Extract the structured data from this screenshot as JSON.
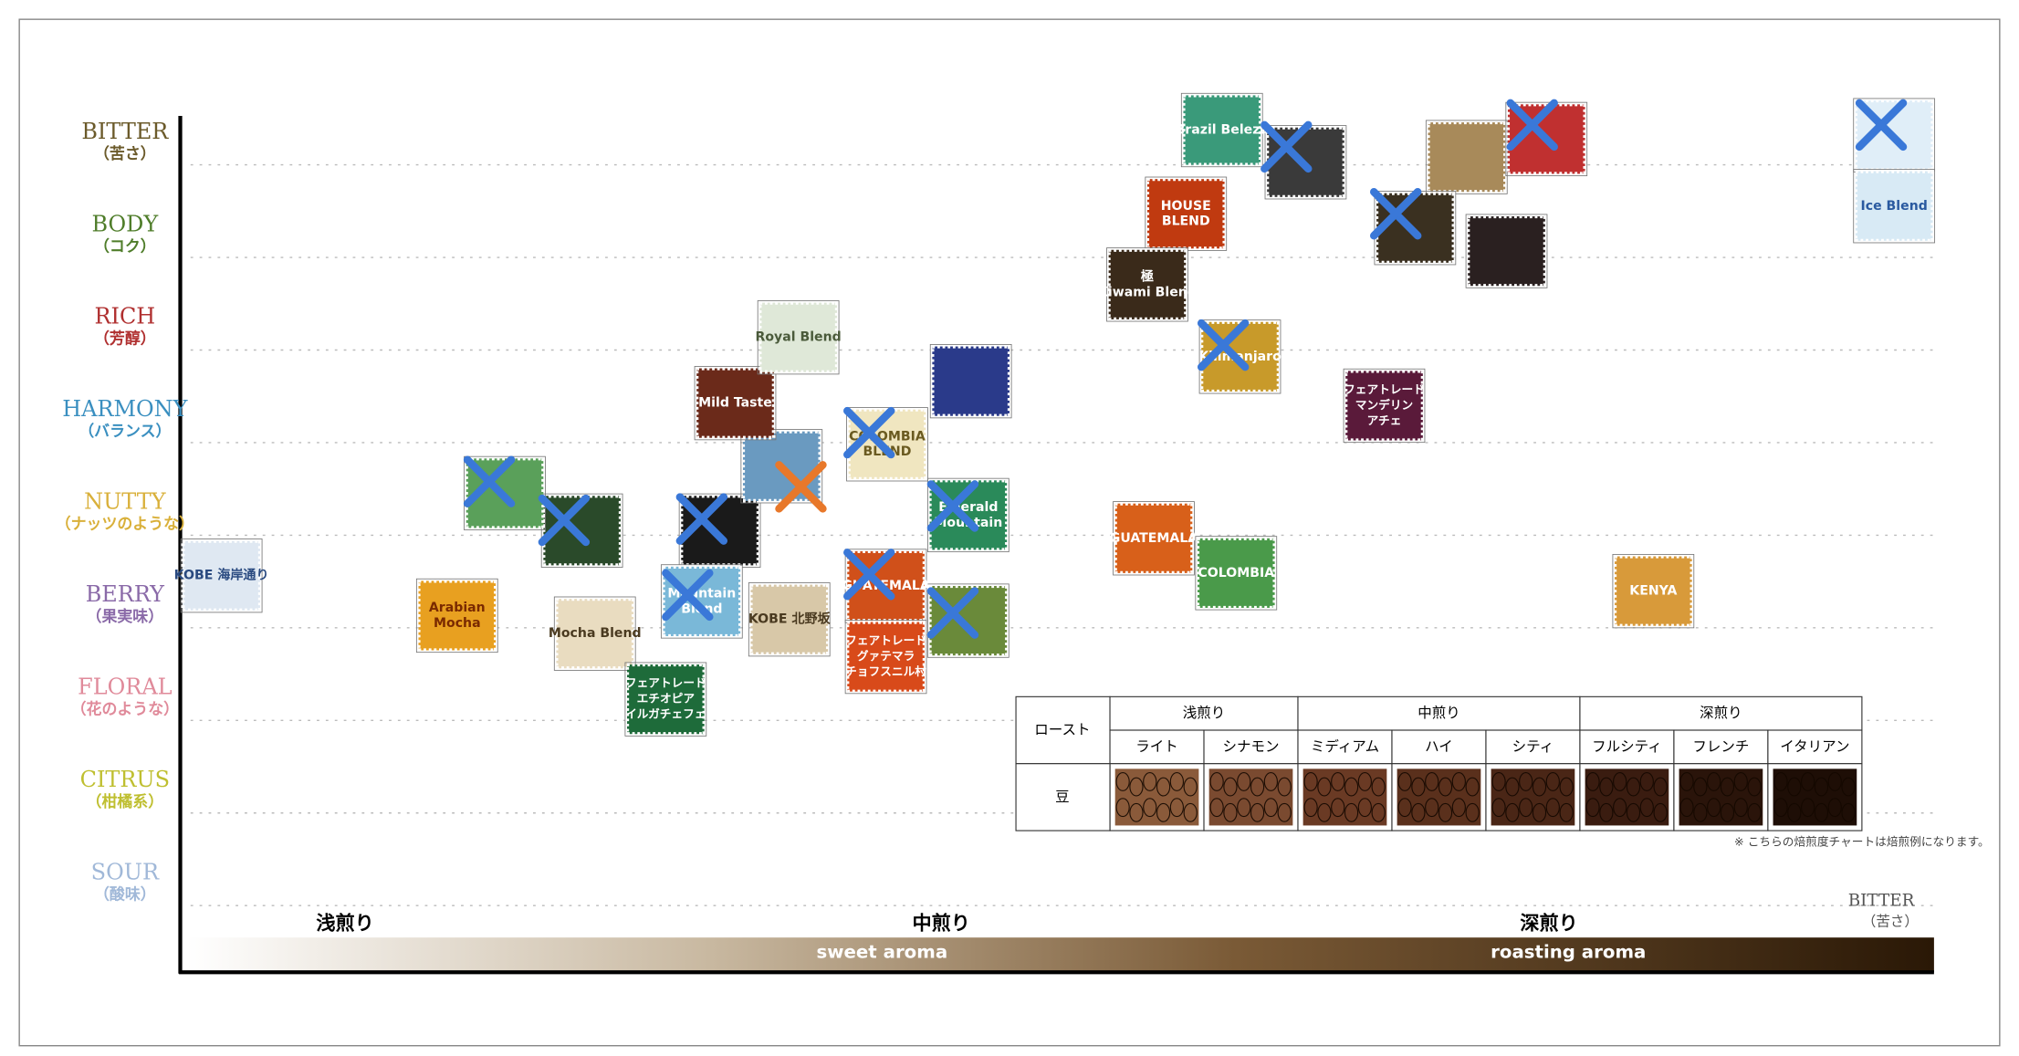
{
  "flavor_axis": [
    {
      "en": "BITTER",
      "ja": "（苦さ）"
    },
    {
      "en": "BODY",
      "ja": "（コク）"
    },
    {
      "en": "RICH",
      "ja": "（芳醇）"
    },
    {
      "en": "HARMONY",
      "ja": "（バランス）"
    },
    {
      "en": "NUTTY",
      "ja": "（ナッツのような）"
    },
    {
      "en": "BERRY",
      "ja": "（果実味）"
    },
    {
      "en": "FLORAL",
      "ja": "（花のような）"
    },
    {
      "en": "CITRUS",
      "ja": "（柑橘系）"
    },
    {
      "en": "SOUR",
      "ja": "（酸味）"
    }
  ],
  "roast_axis": {
    "levels": [
      "浅煎り",
      "中煎り",
      "深煎り"
    ],
    "aromas": [
      "sweet aroma",
      "roasting aroma"
    ],
    "end_en": "BITTER",
    "end_ja": "（苦さ）"
  },
  "stamps": [
    {
      "lines": [
        "KOBE 海岸通り"
      ]
    },
    {
      "lines": [
        "Arabian",
        "Mocha"
      ]
    },
    {
      "lines": [
        "Mocha Blend"
      ]
    },
    {
      "lines": [
        "フェアトレード",
        "エチオピア",
        "イルガチェフェ"
      ]
    },
    {
      "lines": [
        "Mild Taste"
      ]
    },
    {
      "lines": [
        "Royal Blend"
      ]
    },
    {
      "lines": [
        "Mountain",
        "Blend"
      ]
    },
    {
      "lines": [
        "KOBE 北野坂"
      ]
    },
    {
      "lines": [
        "GUATEMALA"
      ]
    },
    {
      "lines": [
        "フェアトレード",
        "グァテマラ",
        "チョフスニル村"
      ]
    },
    {
      "lines": [
        "COLOMBIA",
        "BLEND"
      ]
    },
    {
      "lines": [
        "Emerald",
        "Mountain"
      ]
    },
    {
      "lines": [
        "Brazil Beleza"
      ]
    },
    {
      "lines": [
        "HOUSE",
        "BLEND"
      ]
    },
    {
      "lines": [
        "極",
        "Kiwami Blend"
      ]
    },
    {
      "lines": [
        "Kilimanjaro"
      ]
    },
    {
      "lines": [
        "GUATEMALA"
      ]
    },
    {
      "lines": [
        "COLOMBIA"
      ]
    },
    {
      "lines": [
        "フェアトレード",
        "マンデリン",
        "アチェ"
      ]
    },
    {
      "lines": [
        "KENYA"
      ]
    },
    {
      "lines": [
        "Ice Blend"
      ]
    }
  ],
  "roast_table": {
    "header": "ロースト",
    "groups": [
      "浅煎り",
      "中煎り",
      "深煎り"
    ],
    "levels": [
      "ライト",
      "シナモン",
      "ミディアム",
      "ハイ",
      "シティ",
      "フルシティ",
      "フレンチ",
      "イタリアン"
    ],
    "row_label": "豆",
    "note": "※ こちらの焙煎度チャートは焙煎例になります。"
  }
}
